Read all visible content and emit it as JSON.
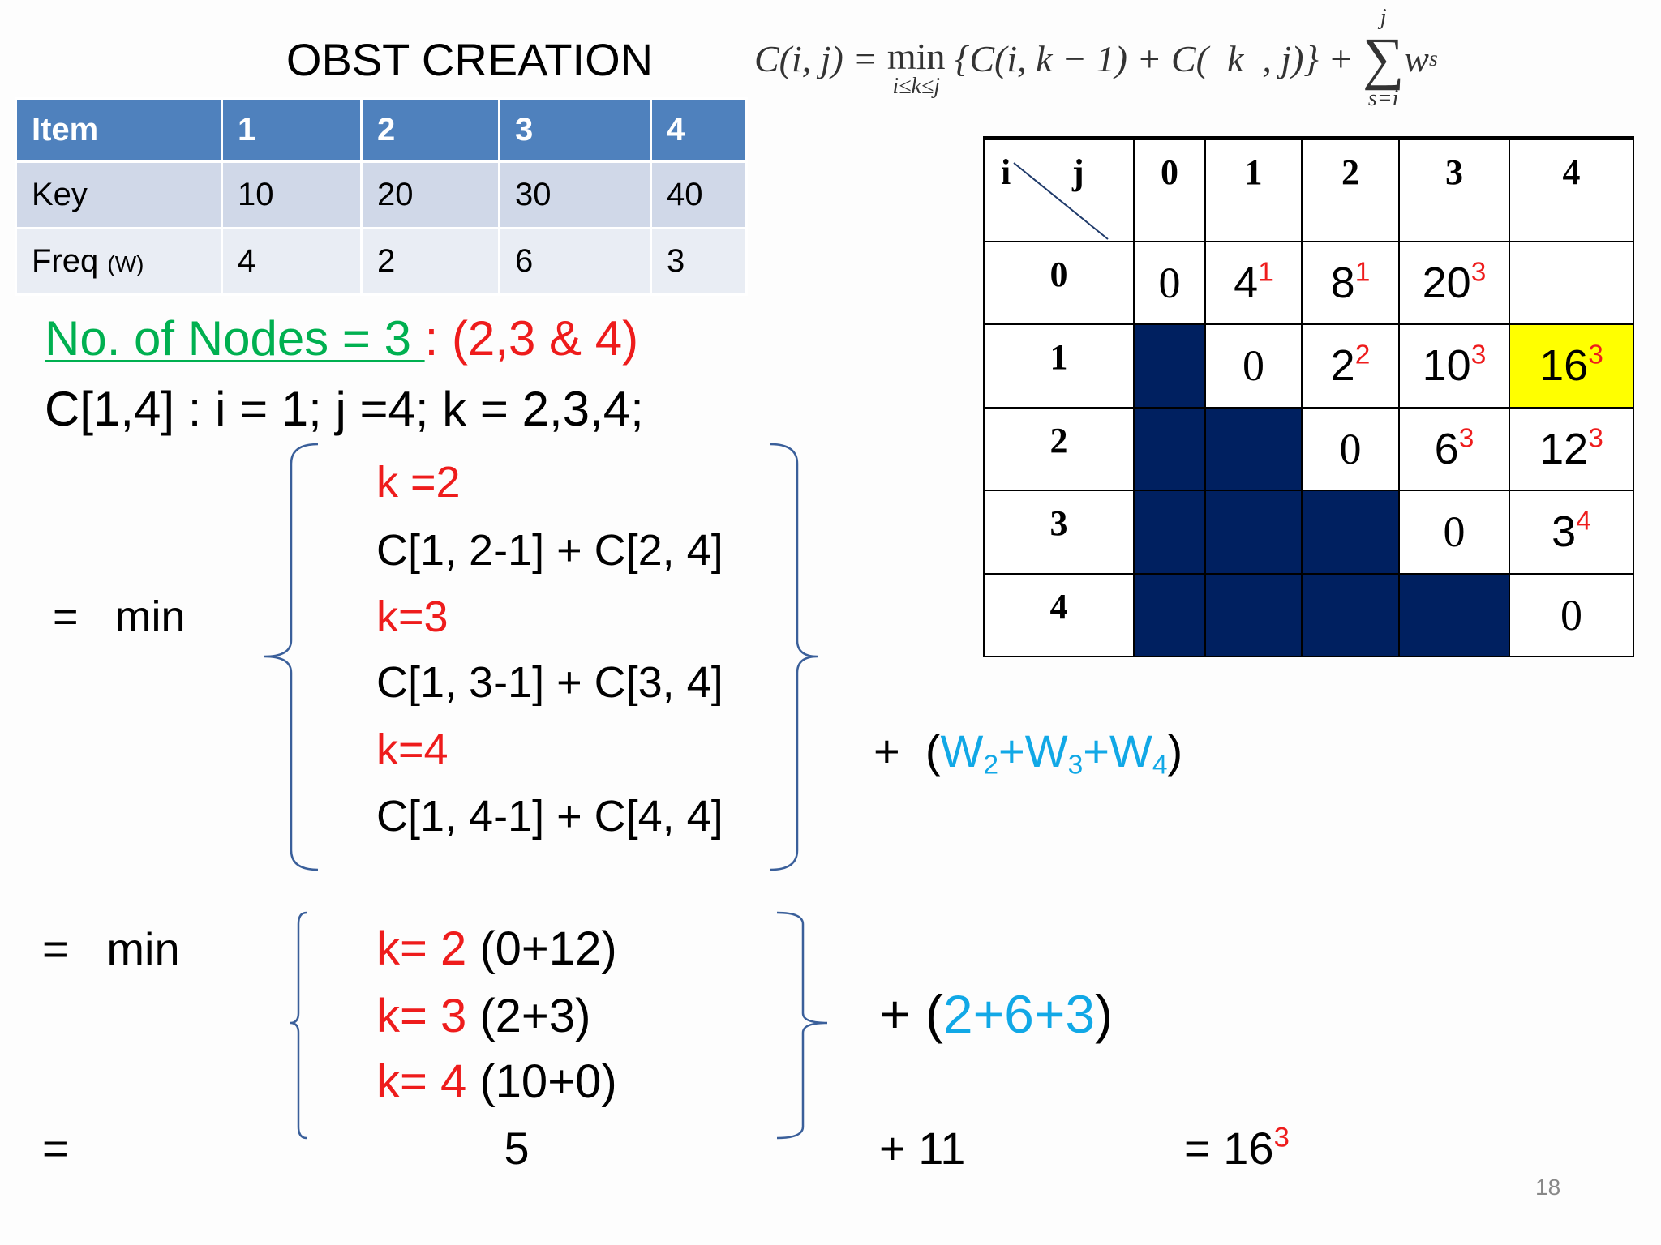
{
  "title": "OBST CREATION",
  "formula": {
    "lhs": "C(i, j) = ",
    "min": "min",
    "min_sub": "i≤k≤j",
    "body": " {C(i, k − 1) + C(  k  , j)} + ",
    "sum": "∑",
    "sum_top": "j",
    "sum_bottom": "s=i",
    "term": "w",
    "term_sub": "s"
  },
  "item_table": {
    "header": [
      "Item",
      "1",
      "2",
      "3",
      "4"
    ],
    "rows": [
      [
        "Key",
        "10",
        "20",
        "30",
        "40"
      ],
      [
        "Freq",
        "4",
        "2",
        "6",
        "3"
      ]
    ],
    "freq_unit": "(W)"
  },
  "cost_table": {
    "corner_i": "i",
    "corner_j": "j",
    "columns": [
      "0",
      "1",
      "2",
      "3",
      "4"
    ],
    "highlight": [
      1,
      4
    ],
    "rows": [
      {
        "label": "0",
        "cells": [
          {
            "value": "0"
          },
          {
            "value": "4",
            "root": "1"
          },
          {
            "value": "8",
            "root": "1"
          },
          {
            "value": "20",
            "root": "3"
          },
          null
        ]
      },
      {
        "label": "1",
        "cells": [
          null,
          {
            "value": "0"
          },
          {
            "value": "2",
            "root": "2"
          },
          {
            "value": "10",
            "root": "3"
          },
          {
            "value": "16",
            "root": "3"
          }
        ]
      },
      {
        "label": "2",
        "cells": [
          null,
          null,
          {
            "value": "0"
          },
          {
            "value": "6",
            "root": "3"
          },
          {
            "value": "12",
            "root": "3"
          }
        ]
      },
      {
        "label": "3",
        "cells": [
          null,
          null,
          null,
          {
            "value": "0"
          },
          {
            "value": "3",
            "root": "4"
          }
        ]
      },
      {
        "label": "4",
        "cells": [
          null,
          null,
          null,
          null,
          {
            "value": "0"
          }
        ]
      }
    ]
  },
  "nodes_line": {
    "text": "No. of Nodes = 3 ",
    "separator": ": ",
    "nodes": "(2,3 & 4)"
  },
  "c14_line": "C[1,4] : i = 1; j =4; k = 2,3,4;",
  "step1": {
    "eq": "=   min",
    "items": [
      {
        "k": "k =2",
        "expr": "C[1, 2-1] + C[2, 4]"
      },
      {
        "k": "k=3",
        "expr": "C[1, 3-1] + C[3, 4]"
      },
      {
        "k": "k=4",
        "expr": "C[1, 4-1] + C[4, 4]"
      }
    ],
    "plus": "+  ",
    "open": "(",
    "weights": [
      {
        "name": "W",
        "sub": "2"
      },
      {
        "name": "W",
        "sub": "3"
      },
      {
        "name": "W",
        "sub": "4"
      }
    ],
    "joiner": "+",
    "close": ")"
  },
  "step2": {
    "eq": "=   min",
    "items": [
      {
        "k": "k= 2",
        "expr": " (0+12)"
      },
      {
        "k": "k= 3",
        "expr": " (2+3)"
      },
      {
        "k": "k= 4",
        "expr": " (10+0)"
      }
    ],
    "plus": "+ ",
    "open": "(",
    "sum": "2+6+3",
    "close": ")"
  },
  "result": {
    "eq": "=",
    "min_value": "5",
    "weight_sum": "+ 11",
    "total": "= 16",
    "total_root": "3"
  },
  "page_number": "18"
}
